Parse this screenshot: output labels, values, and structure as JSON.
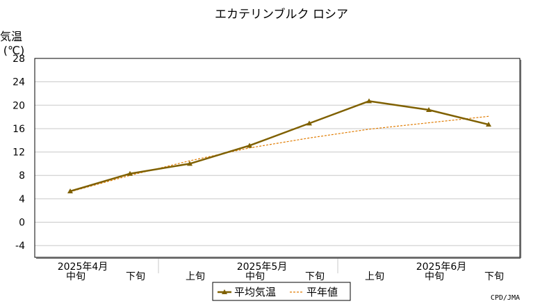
{
  "chart_data": {
    "type": "line",
    "title": "エカテリンブルク ロシア",
    "ylabel_line1": "気温",
    "ylabel_line2": "(℃)",
    "ylim": [
      -6,
      28
    ],
    "yticks": [
      -4,
      0,
      4,
      8,
      12,
      16,
      20,
      24,
      28
    ],
    "grid": true,
    "categories": [
      "中旬",
      "下旬",
      "上旬",
      "中旬",
      "下旬",
      "上旬",
      "中旬",
      "下旬"
    ],
    "month_labels": [
      {
        "label": "2025年4月",
        "category_index": 0
      },
      {
        "label": "2025年5月",
        "category_index": 3
      },
      {
        "label": "2025年6月",
        "category_index": 6
      }
    ],
    "series": [
      {
        "name": "平均気温",
        "values": [
          5.3,
          8.3,
          10.0,
          13.1,
          16.9,
          20.7,
          19.2,
          16.7
        ],
        "color": "#7f6000",
        "style": "solid",
        "marker": "triangle"
      },
      {
        "name": "平年値",
        "values": [
          5.2,
          8.0,
          10.5,
          12.7,
          14.4,
          15.9,
          17.0,
          18.1
        ],
        "color": "#e07b00",
        "style": "dotted"
      }
    ],
    "legend_position": "bottom-center",
    "credit": "CPD/JMA"
  }
}
